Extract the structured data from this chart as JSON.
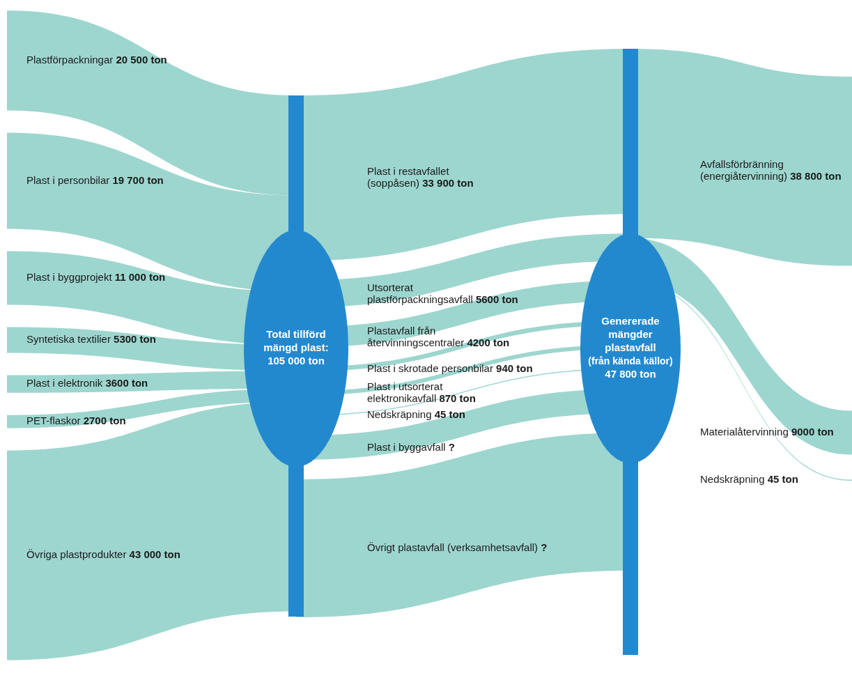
{
  "chart_data": {
    "type": "other",
    "categories": [
      "Plastförpackningar",
      "Plast i personbilar",
      "Plast i byggprojekt",
      "Syntetiska textilier",
      "Plast i elektronik",
      "PET-flaskor",
      "Övriga plastprodukter",
      "Plast i restavfallet\n(soppåsen)",
      "Utsorterat\nplastförpackningsavfall",
      "Plastavfall från\nåtervinningscentraler",
      "Plast i skrotade personbilar",
      "Plast i utsorterat\nelektronikavfall",
      "Nedskräpning",
      "Plast i byggavfall",
      "Övrigt plastavfall (verksamhetsavfall)",
      "Avfallsförbränning\n(energiåtervinning)",
      "Materialåtervinning",
      "Nedskräpning"
    ],
    "series": [
      {
        "color": "#9dd6cf",
        "values": [
          20500,
          19700,
          11000,
          5300,
          3600,
          2700,
          43000,
          null,
          null,
          null,
          null,
          null,
          null,
          null,
          null,
          null,
          null,
          null
        ],
        "value_labels": [
          "20 500 ton",
          "19 700 ton",
          "11 000 ton",
          "5300 ton",
          "3600 ton",
          "2700 ton",
          "43 000 ton",
          null,
          null,
          null,
          null,
          null,
          null,
          null,
          null,
          null,
          null,
          null
        ]
      },
      {
        "color": "#9dd6cf",
        "values": [
          null,
          null,
          null,
          null,
          null,
          null,
          null,
          33900,
          5600,
          4200,
          940,
          870,
          45,
          null,
          null,
          null,
          null,
          null
        ],
        "value_labels": [
          null,
          null,
          null,
          null,
          null,
          null,
          null,
          "33 900 ton",
          "5600 ton",
          "4200 ton",
          "940 ton",
          "870 ton",
          "45 ton",
          "?",
          "?",
          null,
          null,
          null
        ]
      },
      {
        "color": "#9dd6cf",
        "values": [
          null,
          null,
          null,
          null,
          null,
          null,
          null,
          null,
          null,
          null,
          null,
          null,
          null,
          null,
          null,
          38800,
          9000,
          45
        ],
        "value_labels": [
          null,
          null,
          null,
          null,
          null,
          null,
          null,
          null,
          null,
          null,
          null,
          null,
          null,
          null,
          null,
          "38 800 ton",
          "9000 ton",
          "45 ton"
        ]
      }
    ],
    "annotations": [
      "Total tillförd\nmängd plast:\n105 000 ton",
      "Genererade\nmängder\nplastavfall\n(från kända källor)\n47 800 ton"
    ]
  }
}
